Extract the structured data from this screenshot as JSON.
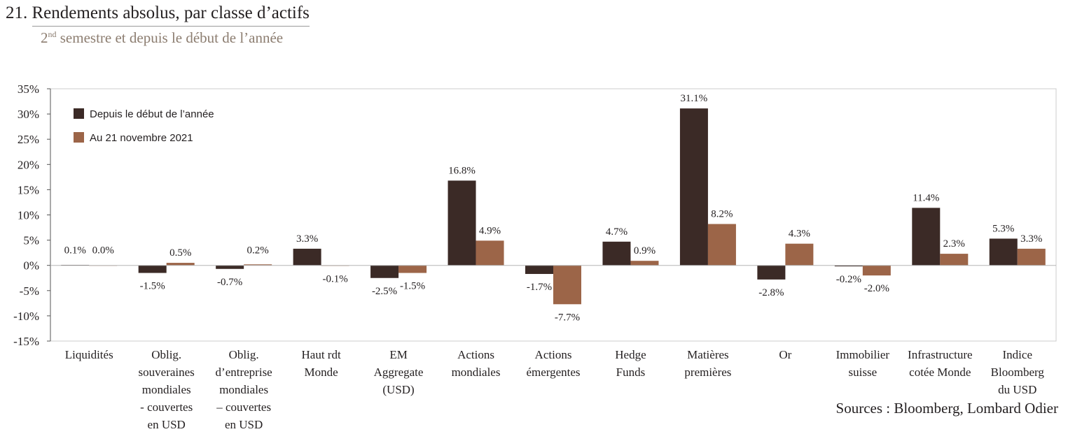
{
  "header": {
    "number": "21.",
    "title": "Rendements absolus, par classe d’actifs",
    "subtitle_prefix": "2",
    "subtitle_sup": "nd",
    "subtitle_rest": " semestre et depuis le début de l’année"
  },
  "footer": {
    "source": "Sources : Bloomberg, Lombard Odier"
  },
  "colors": {
    "ytd": "#3b2a26",
    "recent": "#9c6548",
    "axis": "#555555",
    "frame": "#cccccc"
  },
  "chart_data": {
    "type": "bar",
    "title": "Rendements absolus, par classe d’actifs",
    "subtitle": "2nd semestre et depuis le début de l’année",
    "categories": [
      [
        "Liquidités"
      ],
      [
        "Oblig.",
        "souveraines",
        "mondiales",
        "- couvertes",
        "en USD"
      ],
      [
        "Oblig.",
        "d’entreprise",
        "mondiales",
        "– couvertes",
        "en USD"
      ],
      [
        "Haut rdt",
        "Monde"
      ],
      [
        "EM",
        "Aggregate",
        "(USD)"
      ],
      [
        "Actions",
        "mondiales"
      ],
      [
        "Actions",
        "émergentes"
      ],
      [
        "Hedge",
        "Funds"
      ],
      [
        "Matières",
        "premières"
      ],
      [
        "Or"
      ],
      [
        "Immobilier",
        "suisse"
      ],
      [
        "Infrastructure",
        "cotée Monde"
      ],
      [
        "Indice",
        "Bloomberg",
        "du USD"
      ]
    ],
    "series": [
      {
        "name": "Depuis le début de l’année",
        "color": "#3b2a26",
        "values": [
          0.1,
          -1.5,
          -0.7,
          3.3,
          -2.5,
          16.8,
          -1.7,
          4.7,
          31.1,
          -2.8,
          -0.2,
          11.4,
          5.3
        ],
        "labels": [
          "0.1%",
          "-1.5%",
          "-0.7%",
          "3.3%",
          "-2.5%",
          "16.8%",
          "-1.7%",
          "4.7%",
          "31.1%",
          "-2.8%",
          "-0.2%",
          "11.4%",
          "5.3%"
        ]
      },
      {
        "name": "Au 21 novembre 2021",
        "color": "#9c6548",
        "values": [
          0.0,
          0.5,
          0.2,
          -0.1,
          -1.5,
          4.9,
          -7.7,
          0.9,
          8.2,
          4.3,
          -2.0,
          2.3,
          3.3
        ],
        "labels": [
          "0.0%",
          "0.5%",
          "0.2%",
          "-0.1%",
          "-1.5%",
          "4.9%",
          "-7.7%",
          "0.9%",
          "8.2%",
          "4.3%",
          "-2.0%",
          "2.3%",
          "3.3%"
        ]
      }
    ],
    "yticks": [
      35,
      30,
      25,
      20,
      15,
      10,
      5,
      0,
      -5,
      -10,
      -15
    ],
    "ytick_labels": [
      "35%",
      "30%",
      "25%",
      "20%",
      "15%",
      "10%",
      "5%",
      "0%",
      "-5%",
      "-10%",
      "-15%"
    ],
    "ylim": [
      -15,
      35
    ],
    "legend_position": "top-left",
    "grid": false
  }
}
